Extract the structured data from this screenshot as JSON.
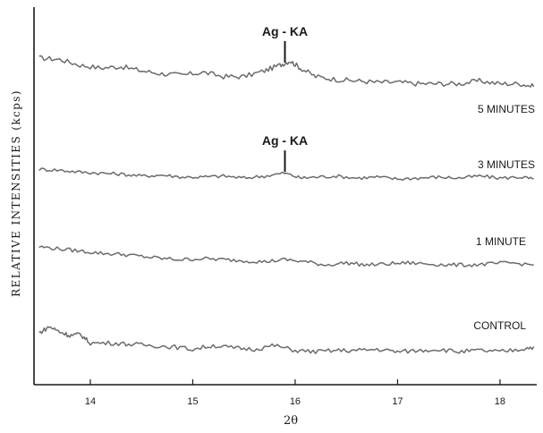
{
  "chart_data": {
    "type": "line",
    "xlabel": "2θ",
    "ylabel": "RELATIVE INTENSITIES (kcps)",
    "xlim": [
      13.45,
      18.35
    ],
    "xticks": [
      14,
      15,
      16,
      17,
      18
    ],
    "grid": false,
    "legend": "none",
    "series": [
      {
        "name": "5 MINUTES",
        "points": [
          [
            13.5,
            7.2
          ],
          [
            13.7,
            7.1
          ],
          [
            13.9,
            6.7
          ],
          [
            14.1,
            6.5
          ],
          [
            14.3,
            6.6
          ],
          [
            14.5,
            6.3
          ],
          [
            14.7,
            6.1
          ],
          [
            14.9,
            6.0
          ],
          [
            15.1,
            6.2
          ],
          [
            15.3,
            5.9
          ],
          [
            15.5,
            5.9
          ],
          [
            15.7,
            6.3
          ],
          [
            15.85,
            6.7
          ],
          [
            15.95,
            7.0
          ],
          [
            16.05,
            6.5
          ],
          [
            16.2,
            5.9
          ],
          [
            16.4,
            5.7
          ],
          [
            16.6,
            5.6
          ],
          [
            16.8,
            5.5
          ],
          [
            17.0,
            5.5
          ],
          [
            17.2,
            5.4
          ],
          [
            17.4,
            5.4
          ],
          [
            17.6,
            5.4
          ],
          [
            17.8,
            5.6
          ],
          [
            18.0,
            5.4
          ],
          [
            18.2,
            5.4
          ],
          [
            18.33,
            5.2
          ]
        ]
      },
      {
        "name": "3 MINUTES",
        "points": [
          [
            13.5,
            4.9
          ],
          [
            13.7,
            4.8
          ],
          [
            13.9,
            4.6
          ],
          [
            14.1,
            4.5
          ],
          [
            14.3,
            4.4
          ],
          [
            14.5,
            4.2
          ],
          [
            14.7,
            4.3
          ],
          [
            14.9,
            4.1
          ],
          [
            15.1,
            4.1
          ],
          [
            15.3,
            4.2
          ],
          [
            15.5,
            4.0
          ],
          [
            15.7,
            4.2
          ],
          [
            15.9,
            4.5
          ],
          [
            16.05,
            4.0
          ],
          [
            16.2,
            4.1
          ],
          [
            16.4,
            4.2
          ],
          [
            16.6,
            4.0
          ],
          [
            16.8,
            4.1
          ],
          [
            17.0,
            3.9
          ],
          [
            17.2,
            4.0
          ],
          [
            17.4,
            4.1
          ],
          [
            17.6,
            4.0
          ],
          [
            17.8,
            4.2
          ],
          [
            18.0,
            4.0
          ],
          [
            18.2,
            4.1
          ],
          [
            18.33,
            3.9
          ]
        ]
      },
      {
        "name": "1 MINUTE",
        "points": [
          [
            13.5,
            3.1
          ],
          [
            13.7,
            2.9
          ],
          [
            13.9,
            2.7
          ],
          [
            14.1,
            2.5
          ],
          [
            14.3,
            2.4
          ],
          [
            14.5,
            2.2
          ],
          [
            14.7,
            2.0
          ],
          [
            14.9,
            1.9
          ],
          [
            15.1,
            2.0
          ],
          [
            15.3,
            1.9
          ],
          [
            15.5,
            1.8
          ],
          [
            15.7,
            1.7
          ],
          [
            15.9,
            1.9
          ],
          [
            16.1,
            1.7
          ],
          [
            16.3,
            1.4
          ],
          [
            16.5,
            1.6
          ],
          [
            16.7,
            1.4
          ],
          [
            16.9,
            1.5
          ],
          [
            17.1,
            1.6
          ],
          [
            17.3,
            1.5
          ],
          [
            17.5,
            1.4
          ],
          [
            17.7,
            1.4
          ],
          [
            17.9,
            1.5
          ],
          [
            18.1,
            1.6
          ],
          [
            18.33,
            1.4
          ]
        ]
      },
      {
        "name": "CONTROL",
        "points": [
          [
            13.5,
            0.7
          ],
          [
            13.6,
            1.2
          ],
          [
            13.7,
            0.8
          ],
          [
            13.8,
            0.5
          ],
          [
            13.9,
            0.6
          ],
          [
            14.0,
            -0.1
          ],
          [
            14.2,
            -0.1
          ],
          [
            14.4,
            -0.2
          ],
          [
            14.6,
            -0.3
          ],
          [
            14.8,
            -0.4
          ],
          [
            15.0,
            -0.6
          ],
          [
            15.2,
            -0.3
          ],
          [
            15.4,
            -0.5
          ],
          [
            15.6,
            -0.6
          ],
          [
            15.8,
            -0.3
          ],
          [
            16.0,
            -0.7
          ],
          [
            16.2,
            -0.8
          ],
          [
            16.4,
            -0.7
          ],
          [
            16.6,
            -0.7
          ],
          [
            16.8,
            -0.6
          ],
          [
            17.0,
            -0.8
          ],
          [
            17.2,
            -0.7
          ],
          [
            17.4,
            -0.6
          ],
          [
            17.6,
            -0.8
          ],
          [
            17.8,
            -0.7
          ],
          [
            18.0,
            -0.8
          ],
          [
            18.2,
            -0.6
          ],
          [
            18.33,
            -0.4
          ]
        ]
      }
    ],
    "annotations": [
      {
        "text": "Ag - KA",
        "x": 15.9,
        "series": "5 MINUTES"
      },
      {
        "text": "Ag - KA",
        "x": 15.9,
        "series": "3 MINUTES"
      }
    ]
  }
}
